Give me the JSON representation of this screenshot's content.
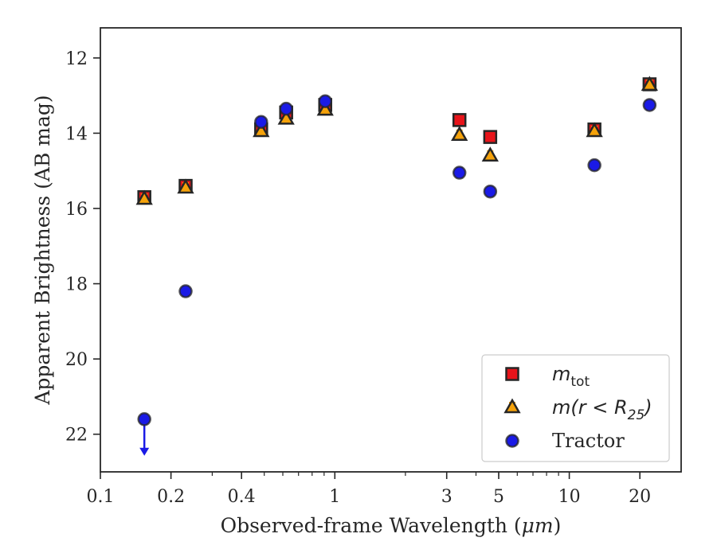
{
  "chart_data": {
    "type": "scatter",
    "title": "",
    "xlabel_prefix": "Observed-frame Wavelength (",
    "xlabel_unit": "μm",
    "xlabel_suffix": ")",
    "ylabel": "Apparent Brightness (AB mag)",
    "xscale": "log",
    "xlim": [
      0.1,
      30
    ],
    "ylim": [
      23.0,
      11.2
    ],
    "y_inverted": true,
    "grid": false,
    "legend_position": "lower-right",
    "xticks": [
      {
        "value": 0.1,
        "label": "0.1"
      },
      {
        "value": 0.2,
        "label": "0.2"
      },
      {
        "value": 0.4,
        "label": "0.4"
      },
      {
        "value": 1,
        "label": "1"
      },
      {
        "value": 3,
        "label": "3"
      },
      {
        "value": 5,
        "label": "5"
      },
      {
        "value": 10,
        "label": "10"
      },
      {
        "value": 20,
        "label": "20"
      }
    ],
    "yticks": [
      {
        "value": 12,
        "label": "12"
      },
      {
        "value": 14,
        "label": "14"
      },
      {
        "value": 16,
        "label": "16"
      },
      {
        "value": 18,
        "label": "18"
      },
      {
        "value": 20,
        "label": "20"
      },
      {
        "value": 22,
        "label": "22"
      }
    ],
    "series": [
      {
        "key": "mtot",
        "legend_main": "m",
        "legend_sub": "tot",
        "marker": "square",
        "face_color": "#e8141a",
        "edge_color": "#262626",
        "error_color": "#e8141a",
        "points": [
          {
            "x": 0.154,
            "y": 15.7
          },
          {
            "x": 0.231,
            "y": 15.4
          },
          {
            "x": 0.485,
            "y": 13.9
          },
          {
            "x": 0.62,
            "y": 13.45
          },
          {
            "x": 0.91,
            "y": 13.25
          },
          {
            "x": 3.4,
            "y": 13.65
          },
          {
            "x": 4.6,
            "y": 14.1
          },
          {
            "x": 12.8,
            "y": 13.9
          },
          {
            "x": 22.0,
            "y": 12.7
          }
        ]
      },
      {
        "key": "mr25",
        "legend_main": "m(r < R",
        "legend_sub": "25",
        "legend_tail": ")",
        "marker": "triangle",
        "face_color": "#f5a20a",
        "edge_color": "#262626",
        "error_color": "#f5a20a",
        "points": [
          {
            "x": 0.154,
            "y": 15.75
          },
          {
            "x": 0.231,
            "y": 15.45
          },
          {
            "x": 0.485,
            "y": 13.95
          },
          {
            "x": 0.62,
            "y": 13.62
          },
          {
            "x": 0.91,
            "y": 13.38
          },
          {
            "x": 3.4,
            "y": 14.05
          },
          {
            "x": 4.6,
            "y": 14.6
          },
          {
            "x": 12.8,
            "y": 13.95
          },
          {
            "x": 22.0,
            "y": 12.72
          }
        ]
      },
      {
        "key": "tractor",
        "legend_main": "Tractor",
        "marker": "circle",
        "face_color": "#1a1ae6",
        "edge_color": "#262626",
        "error_color": "#1a1ae6",
        "points": [
          {
            "x": 0.154,
            "y": 21.6,
            "upper_limit": true
          },
          {
            "x": 0.231,
            "y": 18.2
          },
          {
            "x": 0.485,
            "y": 13.7
          },
          {
            "x": 0.62,
            "y": 13.35
          },
          {
            "x": 0.91,
            "y": 13.15
          },
          {
            "x": 3.4,
            "y": 15.05
          },
          {
            "x": 4.6,
            "y": 15.55
          },
          {
            "x": 12.8,
            "y": 14.85
          },
          {
            "x": 22.0,
            "y": 13.25
          }
        ]
      }
    ]
  }
}
